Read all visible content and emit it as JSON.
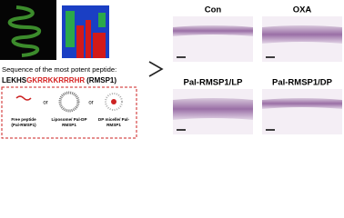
{
  "sequence_caption": "Sequence of the most potent peptide:",
  "sequence": {
    "prefix": "LEKHS",
    "highlight": "GKRRKKRRRHR",
    "name": "(RMSP1)"
  },
  "separator": "or",
  "formulations": [
    {
      "lines": [
        "Free peptide",
        "(Pal-RMSP1)"
      ]
    },
    {
      "lines": [
        "Liposome/ Pal-DP",
        "RMSP1"
      ]
    },
    {
      "lines": [
        "DP micelle/ Pal-",
        "RMSP1"
      ]
    }
  ],
  "panels": [
    {
      "label": "Con"
    },
    {
      "label": "OXA"
    },
    {
      "label": "Pal-RMSP1/LP"
    },
    {
      "label": "Pal-RMSP1/DP"
    }
  ]
}
